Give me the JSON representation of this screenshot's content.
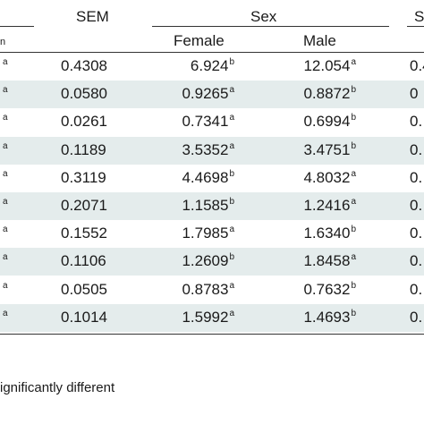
{
  "header": {
    "sem_label": "SEM",
    "sex_label": "Sex",
    "female_label": "Female",
    "male_label": "Male",
    "left_fragment": "n",
    "right_fragment": "S"
  },
  "rows": [
    {
      "left_mark": "a",
      "sem": "0.4308",
      "female": "6.924",
      "female_sup": "b",
      "male": "12.054",
      "male_sup": "a",
      "right_fragment": "0.4"
    },
    {
      "left_mark": "a",
      "sem": "0.0580",
      "female": "0.9265",
      "female_sup": "a",
      "male": "0.8872",
      "male_sup": "b",
      "right_fragment": "0"
    },
    {
      "left_mark": "a",
      "sem": "0.0261",
      "female": "0.7341",
      "female_sup": "a",
      "male": "0.6994",
      "male_sup": "b",
      "right_fragment": "0."
    },
    {
      "left_mark": "a",
      "sem": "0.1189",
      "female": "3.5352",
      "female_sup": "a",
      "male": "3.4751",
      "male_sup": "b",
      "right_fragment": "0."
    },
    {
      "left_mark": "a",
      "sem": "0.3119",
      "female": "4.4698",
      "female_sup": "b",
      "male": "4.8032",
      "male_sup": "a",
      "right_fragment": "0."
    },
    {
      "left_mark": "a",
      "sem": "0.2071",
      "female": "1.1585",
      "female_sup": "b",
      "male": "1.2416",
      "male_sup": "a",
      "right_fragment": "0."
    },
    {
      "left_mark": "a",
      "sem": "0.1552",
      "female": "1.7985",
      "female_sup": "a",
      "male": "1.6340",
      "male_sup": "b",
      "right_fragment": "0."
    },
    {
      "left_mark": "a",
      "sem": "0.1106",
      "female": "1.2609",
      "female_sup": "b",
      "male": "1.8458",
      "male_sup": "a",
      "right_fragment": "0."
    },
    {
      "left_mark": "a",
      "sem": "0.0505",
      "female": "0.8783",
      "female_sup": "a",
      "male": "0.7632",
      "male_sup": "b",
      "right_fragment": "0."
    },
    {
      "left_mark": "a",
      "sem": "0.1014",
      "female": "1.5992",
      "female_sup": "a",
      "male": "1.4693",
      "male_sup": "b",
      "right_fragment": "0."
    }
  ],
  "footnote": "ignificantly different"
}
